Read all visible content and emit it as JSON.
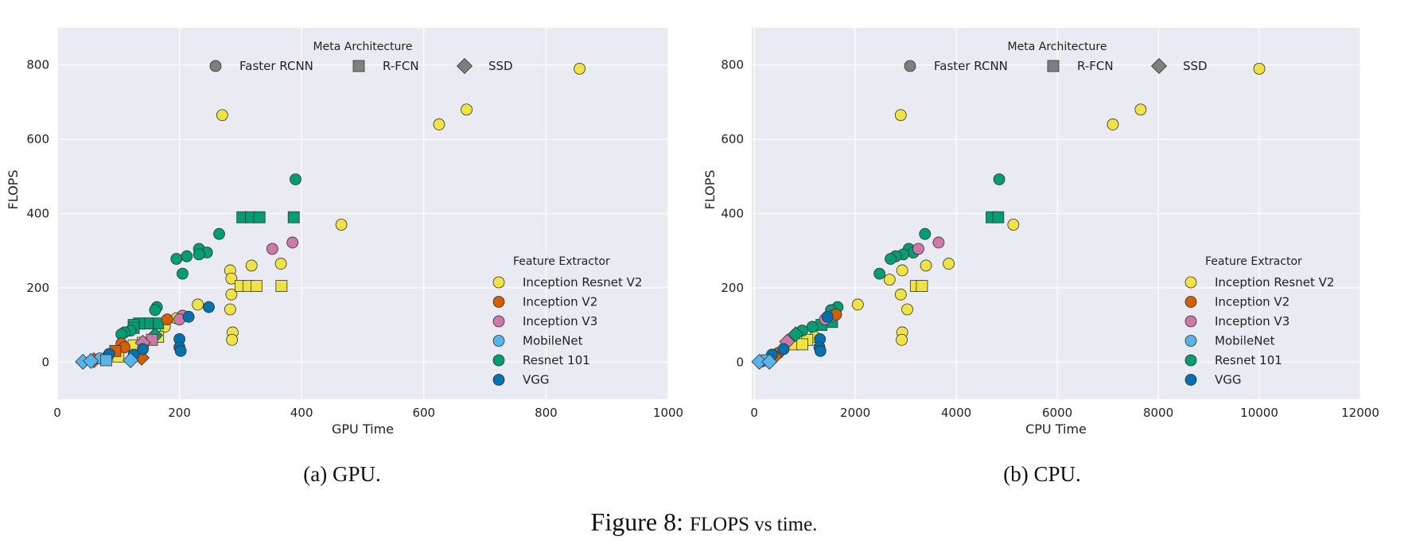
{
  "figure": {
    "caption_label": "Figure 8:",
    "caption_text": "FLOPS vs time.",
    "subcaptions": [
      "(a) GPU.",
      "(b) CPU."
    ]
  },
  "colors": {
    "background": "#EAEAF2",
    "grid": "#FFFFFF",
    "marker_edge": "#333333",
    "meta_legend_marker": "#7F7F7F"
  },
  "feature_extractors": [
    {
      "name": "Inception Resnet V2",
      "color": "#EFE342"
    },
    {
      "name": "Inception V2",
      "color": "#D55E00"
    },
    {
      "name": "Inception V3",
      "color": "#CC79A7"
    },
    {
      "name": "MobileNet",
      "color": "#56B4E9"
    },
    {
      "name": "Resnet 101",
      "color": "#009E73"
    },
    {
      "name": "VGG",
      "color": "#0072B2"
    }
  ],
  "meta_architectures": [
    {
      "name": "Faster RCNN",
      "marker": "circle"
    },
    {
      "name": "R-FCN",
      "marker": "square"
    },
    {
      "name": "SSD",
      "marker": "diamond"
    }
  ],
  "legend_titles": {
    "meta": "Meta Architecture",
    "feature": "Feature Extractor"
  },
  "chart_data": [
    {
      "type": "scatter",
      "xlabel": "GPU Time",
      "ylabel": "FLOPS",
      "xlim": [
        0,
        1000
      ],
      "ylim": [
        -100,
        900
      ],
      "xticks": [
        "0",
        "200",
        "400",
        "600",
        "800",
        "1000"
      ],
      "yticks": [
        "0",
        "200",
        "400",
        "600",
        "800"
      ],
      "grid": true,
      "legend_placement": [
        "top-center",
        "lower-right"
      ],
      "points": [
        {
          "x": 855,
          "y": 790,
          "fe": "Inception Resnet V2",
          "meta": "Faster RCNN"
        },
        {
          "x": 670,
          "y": 680,
          "fe": "Inception Resnet V2",
          "meta": "Faster RCNN"
        },
        {
          "x": 625,
          "y": 640,
          "fe": "Inception Resnet V2",
          "meta": "Faster RCNN"
        },
        {
          "x": 270,
          "y": 665,
          "fe": "Inception Resnet V2",
          "meta": "Faster RCNN"
        },
        {
          "x": 465,
          "y": 370,
          "fe": "Inception Resnet V2",
          "meta": "Faster RCNN"
        },
        {
          "x": 283,
          "y": 247,
          "fe": "Inception Resnet V2",
          "meta": "Faster RCNN"
        },
        {
          "x": 285,
          "y": 225,
          "fe": "Inception Resnet V2",
          "meta": "Faster RCNN"
        },
        {
          "x": 318,
          "y": 260,
          "fe": "Inception Resnet V2",
          "meta": "Faster RCNN"
        },
        {
          "x": 366,
          "y": 265,
          "fe": "Inception Resnet V2",
          "meta": "Faster RCNN"
        },
        {
          "x": 285,
          "y": 182,
          "fe": "Inception Resnet V2",
          "meta": "Faster RCNN"
        },
        {
          "x": 230,
          "y": 155,
          "fe": "Inception Resnet V2",
          "meta": "Faster RCNN"
        },
        {
          "x": 283,
          "y": 142,
          "fe": "Inception Resnet V2",
          "meta": "Faster RCNN"
        },
        {
          "x": 287,
          "y": 80,
          "fe": "Inception Resnet V2",
          "meta": "Faster RCNN"
        },
        {
          "x": 286,
          "y": 60,
          "fe": "Inception Resnet V2",
          "meta": "Faster RCNN"
        },
        {
          "x": 300,
          "y": 205,
          "fe": "Inception Resnet V2",
          "meta": "R-FCN"
        },
        {
          "x": 313,
          "y": 205,
          "fe": "Inception Resnet V2",
          "meta": "R-FCN"
        },
        {
          "x": 326,
          "y": 205,
          "fe": "Inception Resnet V2",
          "meta": "R-FCN"
        },
        {
          "x": 367,
          "y": 205,
          "fe": "Inception Resnet V2",
          "meta": "R-FCN"
        },
        {
          "x": 195,
          "y": 118,
          "fe": "Inception Resnet V2",
          "meta": "Faster RCNN"
        },
        {
          "x": 176,
          "y": 95,
          "fe": "Inception Resnet V2",
          "meta": "Faster RCNN"
        },
        {
          "x": 165,
          "y": 68,
          "fe": "Inception Resnet V2",
          "meta": "R-FCN"
        },
        {
          "x": 140,
          "y": 52,
          "fe": "Inception Resnet V2",
          "meta": "R-FCN"
        },
        {
          "x": 125,
          "y": 45,
          "fe": "Inception Resnet V2",
          "meta": "R-FCN"
        },
        {
          "x": 100,
          "y": 15,
          "fe": "Inception Resnet V2",
          "meta": "R-FCN"
        },
        {
          "x": 80,
          "y": 12,
          "fe": "Inception Resnet V2",
          "meta": "Faster RCNN"
        },
        {
          "x": 390,
          "y": 492,
          "fe": "Resnet 101",
          "meta": "Faster RCNN"
        },
        {
          "x": 303,
          "y": 390,
          "fe": "Resnet 101",
          "meta": "R-FCN"
        },
        {
          "x": 317,
          "y": 390,
          "fe": "Resnet 101",
          "meta": "R-FCN"
        },
        {
          "x": 331,
          "y": 390,
          "fe": "Resnet 101",
          "meta": "R-FCN"
        },
        {
          "x": 387,
          "y": 390,
          "fe": "Resnet 101",
          "meta": "R-FCN"
        },
        {
          "x": 265,
          "y": 345,
          "fe": "Resnet 101",
          "meta": "Faster RCNN"
        },
        {
          "x": 232,
          "y": 305,
          "fe": "Resnet 101",
          "meta": "Faster RCNN"
        },
        {
          "x": 245,
          "y": 295,
          "fe": "Resnet 101",
          "meta": "Faster RCNN"
        },
        {
          "x": 232,
          "y": 290,
          "fe": "Resnet 101",
          "meta": "Faster RCNN"
        },
        {
          "x": 212,
          "y": 285,
          "fe": "Resnet 101",
          "meta": "Faster RCNN"
        },
        {
          "x": 195,
          "y": 278,
          "fe": "Resnet 101",
          "meta": "Faster RCNN"
        },
        {
          "x": 205,
          "y": 238,
          "fe": "Resnet 101",
          "meta": "Faster RCNN"
        },
        {
          "x": 163,
          "y": 148,
          "fe": "Resnet 101",
          "meta": "Faster RCNN"
        },
        {
          "x": 160,
          "y": 140,
          "fe": "Resnet 101",
          "meta": "Faster RCNN"
        },
        {
          "x": 165,
          "y": 104,
          "fe": "Resnet 101",
          "meta": "R-FCN"
        },
        {
          "x": 148,
          "y": 104,
          "fe": "Resnet 101",
          "meta": "R-FCN"
        },
        {
          "x": 134,
          "y": 104,
          "fe": "Resnet 101",
          "meta": "R-FCN"
        },
        {
          "x": 125,
          "y": 100,
          "fe": "Resnet 101",
          "meta": "R-FCN"
        },
        {
          "x": 125,
          "y": 92,
          "fe": "Resnet 101",
          "meta": "R-FCN"
        },
        {
          "x": 120,
          "y": 85,
          "fe": "Resnet 101",
          "meta": "Faster RCNN"
        },
        {
          "x": 110,
          "y": 80,
          "fe": "Resnet 101",
          "meta": "Faster RCNN"
        },
        {
          "x": 105,
          "y": 75,
          "fe": "Resnet 101",
          "meta": "Faster RCNN"
        },
        {
          "x": 160,
          "y": 72,
          "fe": "Resnet 101",
          "meta": "SSD"
        },
        {
          "x": 352,
          "y": 305,
          "fe": "Inception V3",
          "meta": "Faster RCNN"
        },
        {
          "x": 385,
          "y": 322,
          "fe": "Inception V3",
          "meta": "Faster RCNN"
        },
        {
          "x": 205,
          "y": 125,
          "fe": "Inception V3",
          "meta": "Faster RCNN"
        },
        {
          "x": 200,
          "y": 115,
          "fe": "Inception V3",
          "meta": "Faster RCNN"
        },
        {
          "x": 155,
          "y": 60,
          "fe": "Inception V3",
          "meta": "R-FCN"
        },
        {
          "x": 140,
          "y": 52,
          "fe": "Inception V3",
          "meta": "SSD"
        },
        {
          "x": 180,
          "y": 115,
          "fe": "Inception V2",
          "meta": "Faster RCNN"
        },
        {
          "x": 105,
          "y": 50,
          "fe": "Inception V2",
          "meta": "Faster RCNN"
        },
        {
          "x": 110,
          "y": 40,
          "fe": "Inception V2",
          "meta": "Faster RCNN"
        },
        {
          "x": 95,
          "y": 30,
          "fe": "Inception V2",
          "meta": "R-FCN"
        },
        {
          "x": 138,
          "y": 12,
          "fe": "Inception V2",
          "meta": "SSD"
        },
        {
          "x": 60,
          "y": 5,
          "fe": "Inception V2",
          "meta": "SSD"
        },
        {
          "x": 248,
          "y": 148,
          "fe": "VGG",
          "meta": "Faster RCNN"
        },
        {
          "x": 215,
          "y": 122,
          "fe": "VGG",
          "meta": "Faster RCNN"
        },
        {
          "x": 200,
          "y": 62,
          "fe": "VGG",
          "meta": "Faster RCNN"
        },
        {
          "x": 200,
          "y": 40,
          "fe": "VGG",
          "meta": "Faster RCNN"
        },
        {
          "x": 202,
          "y": 30,
          "fe": "VGG",
          "meta": "Faster RCNN"
        },
        {
          "x": 125,
          "y": 20,
          "fe": "VGG",
          "meta": "Faster RCNN"
        },
        {
          "x": 140,
          "y": 35,
          "fe": "VGG",
          "meta": "Faster RCNN"
        },
        {
          "x": 85,
          "y": 22,
          "fe": "VGG",
          "meta": "Faster RCNN"
        },
        {
          "x": 70,
          "y": 10,
          "fe": "MobileNet",
          "meta": "Faster RCNN"
        },
        {
          "x": 80,
          "y": 5,
          "fe": "MobileNet",
          "meta": "R-FCN"
        },
        {
          "x": 120,
          "y": 5,
          "fe": "MobileNet",
          "meta": "SSD"
        },
        {
          "x": 42,
          "y": 1,
          "fe": "MobileNet",
          "meta": "SSD"
        },
        {
          "x": 55,
          "y": 3,
          "fe": "MobileNet",
          "meta": "SSD"
        }
      ]
    },
    {
      "type": "scatter",
      "xlabel": "CPU Time",
      "ylabel": "FLOPS",
      "xlim": [
        -50,
        12000
      ],
      "ylim": [
        -100,
        900
      ],
      "xticks": [
        "0",
        "2000",
        "4000",
        "6000",
        "8000",
        "10000",
        "12000"
      ],
      "yticks": [
        "0",
        "200",
        "400",
        "600",
        "800"
      ],
      "grid": true,
      "legend_placement": [
        "top-center",
        "lower-right"
      ],
      "points": [
        {
          "x": 10000,
          "y": 790,
          "fe": "Inception Resnet V2",
          "meta": "Faster RCNN"
        },
        {
          "x": 7650,
          "y": 680,
          "fe": "Inception Resnet V2",
          "meta": "Faster RCNN"
        },
        {
          "x": 7100,
          "y": 640,
          "fe": "Inception Resnet V2",
          "meta": "Faster RCNN"
        },
        {
          "x": 2900,
          "y": 665,
          "fe": "Inception Resnet V2",
          "meta": "Faster RCNN"
        },
        {
          "x": 5130,
          "y": 370,
          "fe": "Inception Resnet V2",
          "meta": "Faster RCNN"
        },
        {
          "x": 2930,
          "y": 247,
          "fe": "Inception Resnet V2",
          "meta": "Faster RCNN"
        },
        {
          "x": 2680,
          "y": 222,
          "fe": "Inception Resnet V2",
          "meta": "Faster RCNN"
        },
        {
          "x": 3400,
          "y": 260,
          "fe": "Inception Resnet V2",
          "meta": "Faster RCNN"
        },
        {
          "x": 3850,
          "y": 265,
          "fe": "Inception Resnet V2",
          "meta": "Faster RCNN"
        },
        {
          "x": 2900,
          "y": 182,
          "fe": "Inception Resnet V2",
          "meta": "Faster RCNN"
        },
        {
          "x": 2050,
          "y": 155,
          "fe": "Inception Resnet V2",
          "meta": "Faster RCNN"
        },
        {
          "x": 3030,
          "y": 142,
          "fe": "Inception Resnet V2",
          "meta": "Faster RCNN"
        },
        {
          "x": 2930,
          "y": 80,
          "fe": "Inception Resnet V2",
          "meta": "Faster RCNN"
        },
        {
          "x": 2920,
          "y": 60,
          "fe": "Inception Resnet V2",
          "meta": "Faster RCNN"
        },
        {
          "x": 3200,
          "y": 205,
          "fe": "Inception Resnet V2",
          "meta": "R-FCN"
        },
        {
          "x": 3320,
          "y": 205,
          "fe": "Inception Resnet V2",
          "meta": "R-FCN"
        },
        {
          "x": 1200,
          "y": 68,
          "fe": "Inception Resnet V2",
          "meta": "Faster RCNN"
        },
        {
          "x": 1050,
          "y": 60,
          "fe": "Inception Resnet V2",
          "meta": "R-FCN"
        },
        {
          "x": 780,
          "y": 48,
          "fe": "Inception Resnet V2",
          "meta": "R-FCN"
        },
        {
          "x": 950,
          "y": 48,
          "fe": "Inception Resnet V2",
          "meta": "R-FCN"
        },
        {
          "x": 4850,
          "y": 492,
          "fe": "Resnet 101",
          "meta": "Faster RCNN"
        },
        {
          "x": 4700,
          "y": 390,
          "fe": "Resnet 101",
          "meta": "R-FCN"
        },
        {
          "x": 4830,
          "y": 390,
          "fe": "Resnet 101",
          "meta": "R-FCN"
        },
        {
          "x": 3380,
          "y": 345,
          "fe": "Resnet 101",
          "meta": "Faster RCNN"
        },
        {
          "x": 3060,
          "y": 305,
          "fe": "Resnet 101",
          "meta": "Faster RCNN"
        },
        {
          "x": 3150,
          "y": 295,
          "fe": "Resnet 101",
          "meta": "Faster RCNN"
        },
        {
          "x": 2950,
          "y": 290,
          "fe": "Resnet 101",
          "meta": "Faster RCNN"
        },
        {
          "x": 2800,
          "y": 285,
          "fe": "Resnet 101",
          "meta": "Faster RCNN"
        },
        {
          "x": 2700,
          "y": 278,
          "fe": "Resnet 101",
          "meta": "Faster RCNN"
        },
        {
          "x": 2480,
          "y": 238,
          "fe": "Resnet 101",
          "meta": "Faster RCNN"
        },
        {
          "x": 1650,
          "y": 148,
          "fe": "Resnet 101",
          "meta": "Faster RCNN"
        },
        {
          "x": 1520,
          "y": 140,
          "fe": "Resnet 101",
          "meta": "Faster RCNN"
        },
        {
          "x": 1540,
          "y": 108,
          "fe": "Resnet 101",
          "meta": "R-FCN"
        },
        {
          "x": 1330,
          "y": 100,
          "fe": "Resnet 101",
          "meta": "R-FCN"
        },
        {
          "x": 1150,
          "y": 95,
          "fe": "Resnet 101",
          "meta": "Faster RCNN"
        },
        {
          "x": 950,
          "y": 85,
          "fe": "Resnet 101",
          "meta": "Faster RCNN"
        },
        {
          "x": 820,
          "y": 75,
          "fe": "Resnet 101",
          "meta": "SSD"
        },
        {
          "x": 3250,
          "y": 305,
          "fe": "Inception V3",
          "meta": "Faster RCNN"
        },
        {
          "x": 3650,
          "y": 322,
          "fe": "Inception V3",
          "meta": "Faster RCNN"
        },
        {
          "x": 1550,
          "y": 125,
          "fe": "Inception V3",
          "meta": "Faster RCNN"
        },
        {
          "x": 1400,
          "y": 115,
          "fe": "Inception V3",
          "meta": "Faster RCNN"
        },
        {
          "x": 650,
          "y": 55,
          "fe": "Inception V3",
          "meta": "SSD"
        },
        {
          "x": 1620,
          "y": 128,
          "fe": "Inception V2",
          "meta": "Faster RCNN"
        },
        {
          "x": 480,
          "y": 25,
          "fe": "Inception V2",
          "meta": "Faster RCNN"
        },
        {
          "x": 400,
          "y": 15,
          "fe": "Inception V2",
          "meta": "SSD"
        },
        {
          "x": 1450,
          "y": 122,
          "fe": "VGG",
          "meta": "Faster RCNN"
        },
        {
          "x": 1300,
          "y": 62,
          "fe": "VGG",
          "meta": "Faster RCNN"
        },
        {
          "x": 1290,
          "y": 40,
          "fe": "VGG",
          "meta": "Faster RCNN"
        },
        {
          "x": 1310,
          "y": 30,
          "fe": "VGG",
          "meta": "Faster RCNN"
        },
        {
          "x": 580,
          "y": 35,
          "fe": "VGG",
          "meta": "Faster RCNN"
        },
        {
          "x": 350,
          "y": 20,
          "fe": "VGG",
          "meta": "Faster RCNN"
        },
        {
          "x": 150,
          "y": 2,
          "fe": "MobileNet",
          "meta": "Faster RCNN"
        },
        {
          "x": 250,
          "y": 5,
          "fe": "MobileNet",
          "meta": "R-FCN"
        },
        {
          "x": 100,
          "y": 1,
          "fe": "MobileNet",
          "meta": "SSD"
        },
        {
          "x": 300,
          "y": 1,
          "fe": "MobileNet",
          "meta": "SSD"
        }
      ]
    }
  ]
}
